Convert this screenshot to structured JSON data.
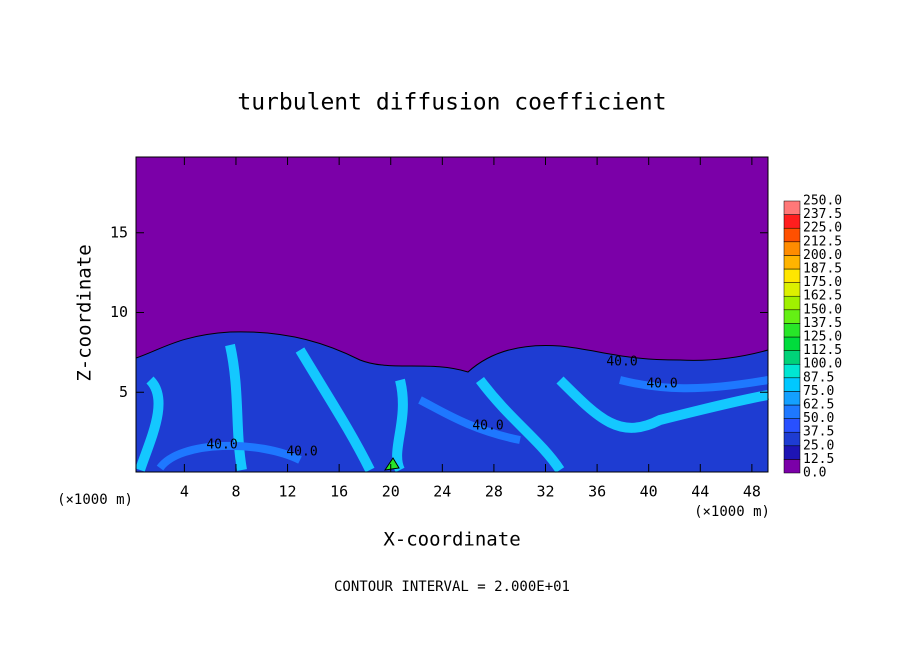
{
  "chart_data": {
    "type": "contour",
    "title": "turbulent diffusion coefficient",
    "x_label": "X-coordinate",
    "y_label": "Z-coordinate",
    "x_unit": "(×1000 m)",
    "y_unit": "(×1000 m)",
    "footer": "CONTOUR INTERVAL = 2.000E+01",
    "xlim": [
      0.25,
      49.25
    ],
    "xticks": [
      4,
      8,
      12,
      16,
      20,
      24,
      28,
      32,
      36,
      40,
      44,
      48
    ],
    "ylim": [
      0,
      19.75
    ],
    "yticks": [
      5,
      10,
      15
    ],
    "contour_labels": [
      "40.0",
      "40.0",
      "40.0",
      "40.0",
      "40.0"
    ],
    "colorbar": {
      "levels": [
        {
          "value": 0,
          "label": "0.0"
        },
        {
          "value": 12.5,
          "label": "12.5"
        },
        {
          "value": 25,
          "label": "25.0"
        },
        {
          "value": 37.5,
          "label": "37.5"
        },
        {
          "value": 50,
          "label": "50.0"
        },
        {
          "value": 62.5,
          "label": "62.5"
        },
        {
          "value": 75,
          "label": "75.0"
        },
        {
          "value": 87.5,
          "label": "87.5"
        },
        {
          "value": 100,
          "label": "100.0"
        },
        {
          "value": 112.5,
          "label": "112.5"
        },
        {
          "value": 125,
          "label": "125.0"
        },
        {
          "value": 137.5,
          "label": "137.5"
        },
        {
          "value": 150,
          "label": "150.0"
        },
        {
          "value": 162.5,
          "label": "162.5"
        },
        {
          "value": 175,
          "label": "175.0"
        },
        {
          "value": 187.5,
          "label": "187.5"
        },
        {
          "value": 200,
          "label": "200.0"
        },
        {
          "value": 212.5,
          "label": "212.5"
        },
        {
          "value": 225,
          "label": "225.0"
        },
        {
          "value": 237.5,
          "label": "237.5"
        },
        {
          "value": 250,
          "label": "250.0"
        }
      ],
      "colors": [
        "#7b00a8",
        "#1e14b4",
        "#1e3cd2",
        "#2850ff",
        "#1e78ff",
        "#14a0ff",
        "#00c8ff",
        "#00e6d2",
        "#00d278",
        "#00dc3c",
        "#28e628",
        "#64f014",
        "#a0f000",
        "#dcf000",
        "#ffe600",
        "#ffb400",
        "#ff8c00",
        "#ff5000",
        "#ff1e1e",
        "#ff7878"
      ]
    }
  }
}
